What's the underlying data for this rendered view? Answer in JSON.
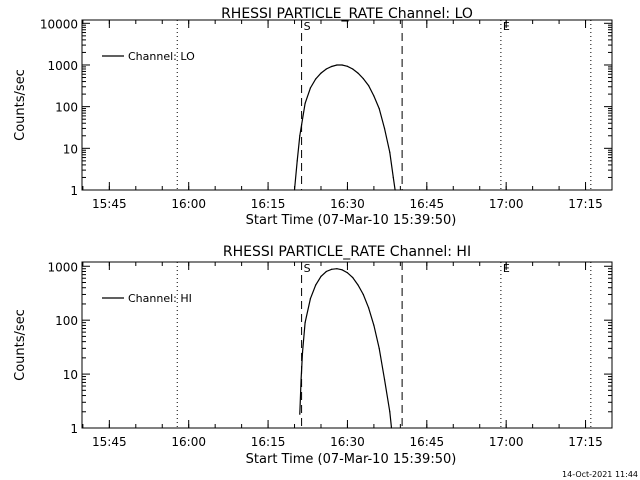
{
  "footer": {
    "timestamp": "14-Oct-2021 11:44"
  },
  "chart_data": [
    {
      "type": "line",
      "title": "RHESSI PARTICLE_RATE Channel: LO",
      "xlabel": "Start Time (07-Mar-10 15:39:50)",
      "ylabel": "Counts/sec",
      "yscale": "log",
      "ylim": [
        1,
        12000
      ],
      "xlim": [
        "15:39:50",
        "17:20:00"
      ],
      "x_ticks": [
        "15:45",
        "16:00",
        "16:15",
        "16:30",
        "16:45",
        "17:00",
        "17:15"
      ],
      "y_ticks": [
        "1",
        "10",
        "100",
        "1000",
        "10000"
      ],
      "legend": {
        "position": "top-left",
        "entries": [
          "Channel: LO"
        ]
      },
      "markers": [
        {
          "label": "",
          "time": "15:57:50",
          "style": "dotted"
        },
        {
          "label": "S",
          "time": "16:21:20",
          "style": "dashed"
        },
        {
          "label": "",
          "time": "16:40:20",
          "style": "dashed"
        },
        {
          "label": "E",
          "time": "16:59:00",
          "style": "dotted"
        },
        {
          "label": "",
          "time": "17:16:00",
          "style": "dotted"
        }
      ],
      "series": [
        {
          "name": "Channel: LO",
          "x": [
            "16:20:00",
            "16:20:30",
            "16:21:00",
            "16:22:00",
            "16:23:00",
            "16:24:00",
            "16:25:00",
            "16:26:00",
            "16:27:00",
            "16:28:00",
            "16:29:00",
            "16:30:00",
            "16:31:00",
            "16:32:00",
            "16:33:00",
            "16:34:00",
            "16:35:00",
            "16:36:00",
            "16:37:00",
            "16:38:00",
            "16:38:40",
            "16:39:00"
          ],
          "y": [
            1,
            5,
            20,
            120,
            280,
            460,
            640,
            800,
            920,
            1000,
            1000,
            930,
            800,
            640,
            470,
            320,
            180,
            90,
            30,
            8,
            2,
            1
          ]
        }
      ]
    },
    {
      "type": "line",
      "title": "RHESSI PARTICLE_RATE Channel: HI",
      "xlabel": "Start Time (07-Mar-10 15:39:50)",
      "ylabel": "Counts/sec",
      "yscale": "log",
      "ylim": [
        1,
        1200
      ],
      "xlim": [
        "15:39:50",
        "17:20:00"
      ],
      "x_ticks": [
        "15:45",
        "16:00",
        "16:15",
        "16:30",
        "16:45",
        "17:00",
        "17:15"
      ],
      "y_ticks": [
        "1",
        "10",
        "100",
        "1000"
      ],
      "legend": {
        "position": "top-left",
        "entries": [
          "Channel: HI"
        ]
      },
      "markers": [
        {
          "label": "",
          "time": "15:57:50",
          "style": "dotted"
        },
        {
          "label": "S",
          "time": "16:21:20",
          "style": "dashed"
        },
        {
          "label": "",
          "time": "16:40:20",
          "style": "dashed"
        },
        {
          "label": "E",
          "time": "16:59:00",
          "style": "dotted"
        },
        {
          "label": "",
          "time": "17:16:00",
          "style": "dotted"
        }
      ],
      "series": [
        {
          "name": "Channel: HI",
          "x": [
            "16:21:00",
            "16:21:15",
            "16:21:30",
            "16:22:00",
            "16:23:00",
            "16:24:00",
            "16:25:00",
            "16:26:00",
            "16:27:00",
            "16:28:00",
            "16:29:00",
            "16:30:00",
            "16:31:00",
            "16:32:00",
            "16:33:00",
            "16:34:00",
            "16:35:00",
            "16:36:00",
            "16:37:00",
            "16:38:00",
            "16:38:20"
          ],
          "y": [
            1.8,
            8,
            25,
            90,
            250,
            450,
            650,
            800,
            880,
            900,
            860,
            760,
            620,
            450,
            300,
            170,
            80,
            30,
            8,
            2,
            1
          ]
        }
      ]
    }
  ]
}
